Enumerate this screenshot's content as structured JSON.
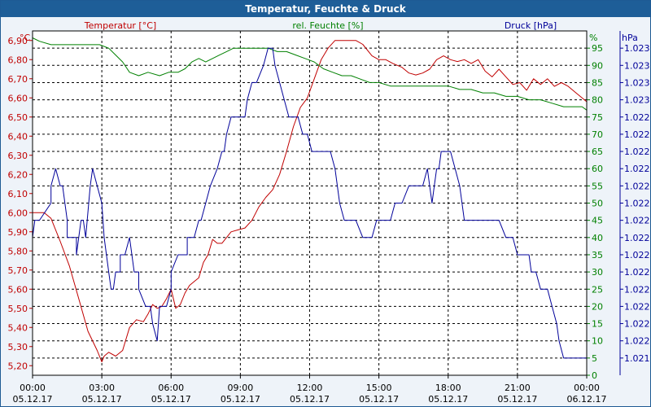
{
  "window": {
    "title": "Temperatur, Feuchte & Druck"
  },
  "colors": {
    "temperature": "#c00000",
    "humidity": "#008000",
    "pressure": "#000099",
    "axis": "#000000",
    "grid": "#000000",
    "plot_bg": "#ffffff"
  },
  "chart_data": {
    "type": "line",
    "title": "Temperatur, Feuchte & Druck",
    "grid": true,
    "x_axis": {
      "range": [
        "05.12.17 00:00",
        "06.12.17 00:00"
      ],
      "range_hours": [
        0,
        24
      ],
      "ticks": [
        {
          "time": "00:00",
          "date": "05.12.17",
          "h": 0
        },
        {
          "time": "03:00",
          "date": "05.12.17",
          "h": 3
        },
        {
          "time": "06:00",
          "date": "05.12.17",
          "h": 6
        },
        {
          "time": "09:00",
          "date": "05.12.17",
          "h": 9
        },
        {
          "time": "12:00",
          "date": "05.12.17",
          "h": 12
        },
        {
          "time": "15:00",
          "date": "05.12.17",
          "h": 15
        },
        {
          "time": "18:00",
          "date": "05.12.17",
          "h": 18
        },
        {
          "time": "21:00",
          "date": "05.12.17",
          "h": 21
        },
        {
          "time": "00:00",
          "date": "06.12.17",
          "h": 24
        }
      ]
    },
    "y_left": {
      "label": "Temperatur [°C]",
      "unit": "°C",
      "range": [
        5.15,
        6.95
      ],
      "ticks": [
        "5,20",
        "5,30",
        "5,40",
        "5,50",
        "5,60",
        "5,70",
        "5,80",
        "5,90",
        "6,00",
        "6,10",
        "6,20",
        "6,30",
        "6,40",
        "6,50",
        "6,60",
        "6,70",
        "6,80",
        "6,90"
      ],
      "tick_values": [
        5.2,
        5.3,
        5.4,
        5.5,
        5.6,
        5.7,
        5.8,
        5.9,
        6.0,
        6.1,
        6.2,
        6.3,
        6.4,
        6.5,
        6.6,
        6.7,
        6.8,
        6.9
      ]
    },
    "y_mid": {
      "label": "rel. Feuchte [%]",
      "unit": "%",
      "range": [
        0,
        100
      ],
      "ticks": [
        "0",
        "5",
        "10",
        "15",
        "20",
        "25",
        "30",
        "35",
        "40",
        "45",
        "50",
        "55",
        "60",
        "65",
        "70",
        "75",
        "80",
        "85",
        "90",
        "95"
      ],
      "tick_values": [
        0,
        5,
        10,
        15,
        20,
        25,
        30,
        35,
        40,
        45,
        50,
        55,
        60,
        65,
        70,
        75,
        80,
        85,
        90,
        95
      ]
    },
    "y_right": {
      "label": "Druck [hPa]",
      "unit": "hPa",
      "ticks": [
        "1.021",
        "1.022",
        "1.022",
        "1.022",
        "1.022",
        "1.022",
        "1.022",
        "1.022",
        "1.022",
        "1.022",
        "1.022",
        "1.022",
        "1.022",
        "1.022",
        "1.022",
        "1.023",
        "1.023",
        "1.023",
        "1.023"
      ],
      "tick_values": [
        5,
        10,
        15,
        20,
        25,
        30,
        35,
        40,
        45,
        50,
        55,
        60,
        65,
        70,
        75,
        80,
        85,
        90,
        95
      ]
    },
    "series": [
      {
        "name": "Temperatur [°C]",
        "axis": "left",
        "x": [
          0,
          0.5,
          0.8,
          1.2,
          1.6,
          2.0,
          2.4,
          2.8,
          3.0,
          3.1,
          3.3,
          3.6,
          3.9,
          4.0,
          4.2,
          4.5,
          4.8,
          5.0,
          5.2,
          5.4,
          5.6,
          5.8,
          6.0,
          6.2,
          6.4,
          6.6,
          6.8,
          7.0,
          7.2,
          7.4,
          7.6,
          7.8,
          8.0,
          8.2,
          8.4,
          8.6,
          8.9,
          9.2,
          9.5,
          9.8,
          10.1,
          10.4,
          10.7,
          11.0,
          11.3,
          11.6,
          11.9,
          12.2,
          12.5,
          12.8,
          13.1,
          13.4,
          13.7,
          14.0,
          14.3,
          14.7,
          15.0,
          15.3,
          15.6,
          16.0,
          16.3,
          16.6,
          16.9,
          17.2,
          17.5,
          17.8,
          18.1,
          18.4,
          18.7,
          19.0,
          19.3,
          19.6,
          19.9,
          20.2,
          20.5,
          20.8,
          21.1,
          21.4,
          21.7,
          22.0,
          22.3,
          22.6,
          22.9,
          23.2,
          23.5,
          23.8,
          24.0
        ],
        "values": [
          6.0,
          6.0,
          5.97,
          5.85,
          5.72,
          5.55,
          5.38,
          5.28,
          5.22,
          5.25,
          5.27,
          5.25,
          5.28,
          5.32,
          5.4,
          5.44,
          5.43,
          5.47,
          5.52,
          5.5,
          5.51,
          5.55,
          5.6,
          5.5,
          5.52,
          5.58,
          5.62,
          5.64,
          5.66,
          5.74,
          5.78,
          5.86,
          5.84,
          5.84,
          5.87,
          5.9,
          5.91,
          5.92,
          5.96,
          6.03,
          6.08,
          6.12,
          6.2,
          6.32,
          6.45,
          6.55,
          6.6,
          6.7,
          6.8,
          6.86,
          6.9,
          6.9,
          6.9,
          6.9,
          6.88,
          6.82,
          6.8,
          6.8,
          6.78,
          6.76,
          6.73,
          6.72,
          6.73,
          6.75,
          6.8,
          6.82,
          6.8,
          6.79,
          6.8,
          6.78,
          6.8,
          6.74,
          6.71,
          6.75,
          6.71,
          6.67,
          6.68,
          6.64,
          6.7,
          6.67,
          6.7,
          6.66,
          6.68,
          6.66,
          6.63,
          6.6,
          6.58
        ]
      },
      {
        "name": "rel. Feuchte [%]",
        "axis": "mid",
        "x": [
          0,
          0.3,
          0.8,
          1.5,
          2.2,
          2.9,
          3.3,
          3.6,
          3.9,
          4.2,
          4.6,
          5.0,
          5.5,
          5.9,
          6.3,
          6.6,
          6.9,
          7.2,
          7.5,
          7.8,
          8.1,
          8.4,
          8.7,
          9.0,
          9.4,
          9.8,
          10.2,
          10.6,
          11.0,
          11.4,
          11.8,
          12.2,
          12.6,
          13.0,
          13.4,
          13.8,
          14.2,
          14.6,
          15.0,
          15.5,
          16.0,
          16.5,
          17.0,
          17.5,
          18.0,
          18.5,
          19.0,
          19.5,
          20.0,
          20.5,
          21.0,
          21.5,
          22.0,
          22.5,
          23.0,
          23.5,
          23.8,
          24.0
        ],
        "values": [
          98,
          97,
          96,
          96,
          96,
          96,
          95,
          93,
          91,
          88,
          87,
          88,
          87,
          88,
          88,
          89,
          91,
          92,
          91,
          92,
          93,
          94,
          95,
          95,
          95,
          95,
          95,
          94,
          94,
          93,
          92,
          91,
          89,
          88,
          87,
          87,
          86,
          85,
          85,
          84,
          84,
          84,
          84,
          84,
          84,
          83,
          83,
          82,
          82,
          81,
          81,
          80,
          80,
          79,
          78,
          78,
          78,
          77
        ]
      },
      {
        "name": "Druck [hPa]",
        "axis": "right",
        "x": [
          0,
          0.1,
          0.3,
          0.8,
          0.8,
          1.0,
          1.2,
          1.3,
          1.5,
          1.5,
          1.9,
          1.9,
          2.1,
          2.2,
          2.3,
          2.3,
          2.5,
          2.6,
          2.8,
          3.0,
          3.1,
          3.2,
          3.3,
          3.4,
          3.5,
          3.6,
          3.8,
          3.8,
          4.0,
          4.0,
          4.2,
          4.4,
          4.6,
          4.6,
          4.9,
          5.1,
          5.2,
          5.4,
          5.5,
          5.5,
          5.7,
          5.8,
          6.0,
          6.0,
          6.3,
          6.5,
          6.7,
          6.7,
          7.0,
          7.2,
          7.3,
          7.5,
          7.7,
          8.0,
          8.2,
          8.3,
          8.4,
          8.6,
          8.8,
          9.0,
          9.2,
          9.3,
          9.5,
          9.7,
          10.0,
          10.2,
          10.4,
          10.5,
          10.7,
          10.9,
          11.1,
          11.3,
          11.4,
          11.5,
          11.7,
          11.9,
          12.1,
          12.3,
          12.5,
          12.7,
          12.9,
          13.1,
          13.3,
          13.5,
          13.7,
          14.0,
          14.3,
          14.5,
          14.7,
          14.9,
          15.1,
          15.3,
          15.5,
          15.7,
          16.0,
          16.3,
          16.5,
          16.7,
          16.9,
          17.1,
          17.2,
          17.3,
          17.4,
          17.5,
          17.6,
          17.7,
          17.9,
          18.0,
          18.1,
          18.3,
          18.5,
          18.7,
          18.9,
          19.0,
          19.1,
          19.3,
          19.5,
          19.7,
          19.9,
          20.2,
          20.5,
          20.8,
          21.0,
          21.2,
          21.5,
          21.6,
          21.8,
          22.0,
          22.1,
          22.3,
          22.5,
          22.7,
          22.8,
          23.0,
          23.2,
          23.4,
          23.6,
          23.8,
          24.0
        ],
        "values": [
          40,
          45,
          45,
          50,
          55,
          60,
          55,
          55,
          45,
          40,
          40,
          35,
          45,
          45,
          40,
          40,
          55,
          60,
          55,
          50,
          40,
          35,
          30,
          25,
          25,
          30,
          30,
          35,
          35,
          35,
          40,
          30,
          30,
          25,
          20,
          20,
          15,
          10,
          20,
          20,
          20,
          20,
          25,
          30,
          35,
          35,
          35,
          40,
          40,
          45,
          45,
          50,
          55,
          60,
          65,
          65,
          70,
          75,
          75,
          75,
          75,
          80,
          85,
          85,
          90,
          95,
          95,
          90,
          85,
          80,
          75,
          75,
          75,
          75,
          70,
          70,
          65,
          65,
          65,
          65,
          65,
          60,
          50,
          45,
          45,
          45,
          40,
          40,
          40,
          45,
          45,
          45,
          45,
          50,
          50,
          55,
          55,
          55,
          55,
          60,
          55,
          50,
          55,
          60,
          60,
          65,
          65,
          65,
          65,
          60,
          55,
          45,
          45,
          45,
          45,
          45,
          45,
          45,
          45,
          45,
          40,
          40,
          35,
          35,
          35,
          30,
          30,
          25,
          25,
          25,
          20,
          15,
          10,
          5,
          5,
          5,
          5,
          5,
          5
        ]
      }
    ]
  }
}
